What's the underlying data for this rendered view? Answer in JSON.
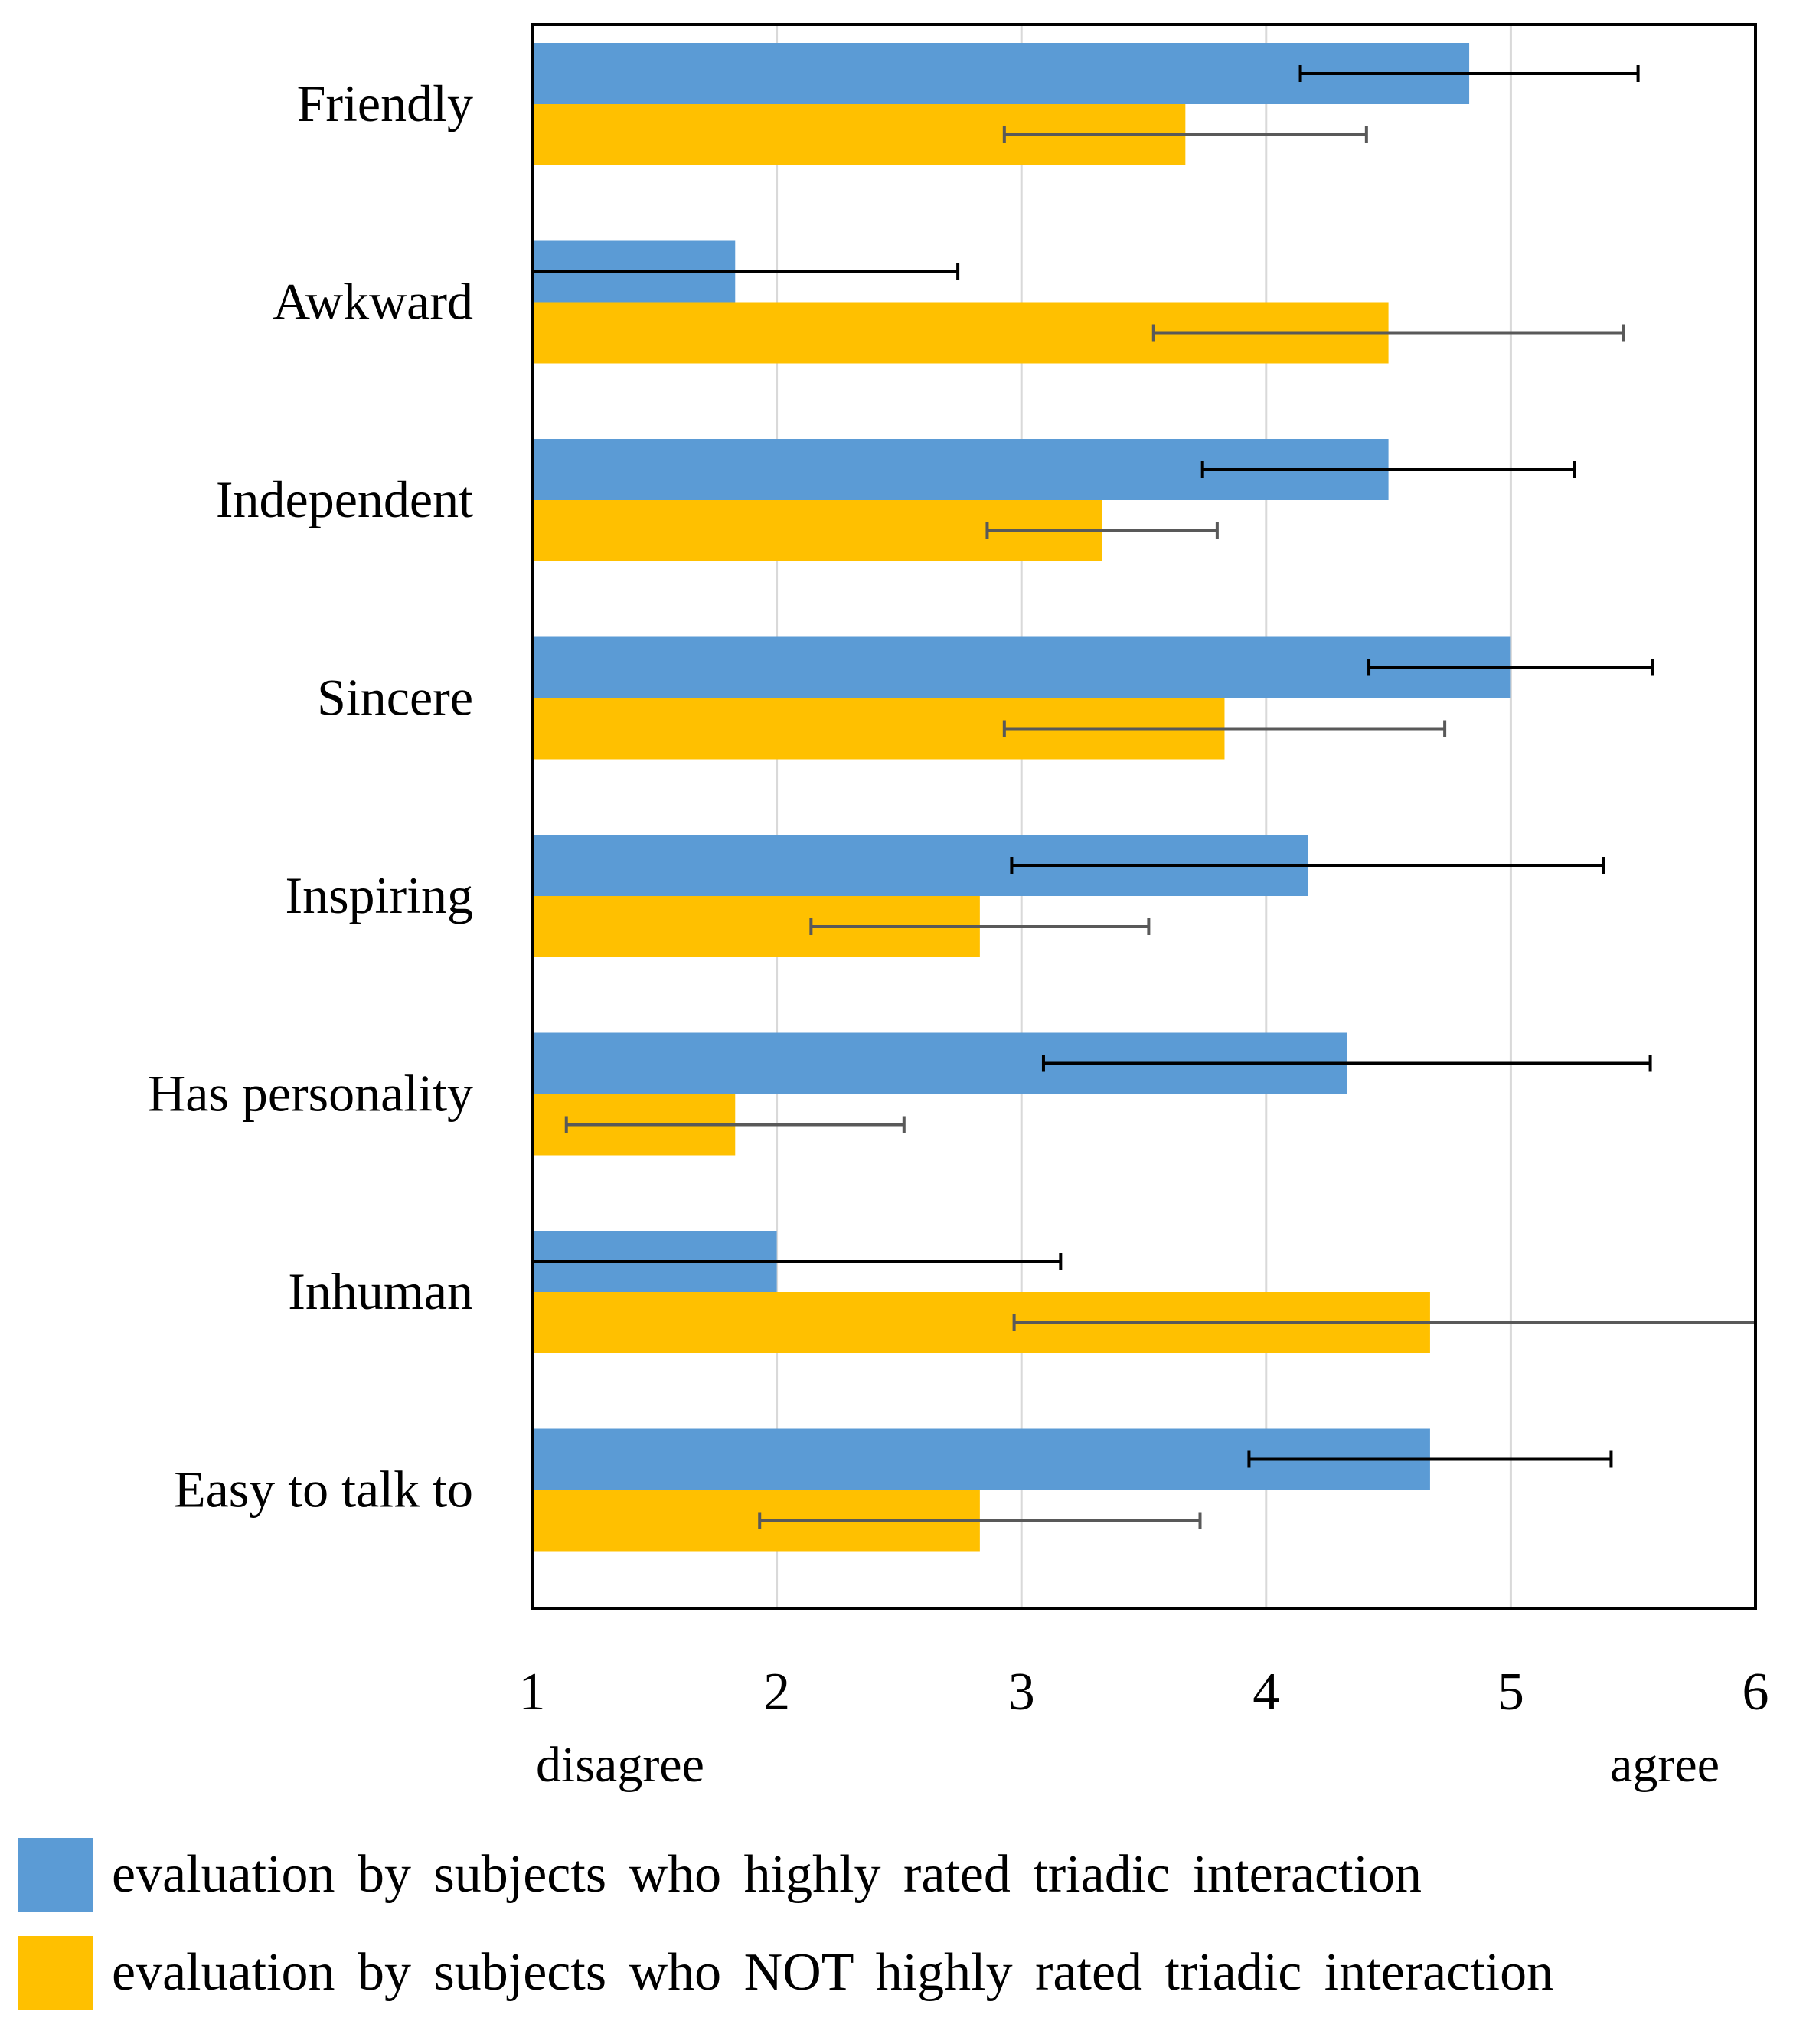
{
  "chart_data": {
    "type": "bar",
    "orientation": "horizontal",
    "categories": [
      "Friendly",
      "Awkward",
      "Independent",
      "Sincere",
      "Inspiring",
      "Has personality",
      "Inhuman",
      "Easy to talk to"
    ],
    "series": [
      {
        "name": "evaluation by subjects who highly rated triadic interaction",
        "color": "#5b9bd5",
        "values": [
          4.83,
          1.83,
          4.5,
          5.0,
          4.17,
          4.33,
          2.0,
          4.67
        ],
        "errors": [
          0.69,
          0.91,
          0.76,
          0.58,
          1.21,
          1.24,
          1.16,
          0.74
        ]
      },
      {
        "name": "evaluation by subjects who NOT highly rated triadic interaction",
        "color": "#ffc000",
        "values": [
          3.67,
          4.5,
          3.33,
          3.83,
          2.83,
          1.83,
          4.67,
          2.83
        ],
        "errors": [
          0.74,
          0.96,
          0.47,
          0.9,
          0.69,
          0.69,
          1.7,
          0.9
        ]
      }
    ],
    "xlim": [
      1,
      6
    ],
    "xticks": [
      "1",
      "2",
      "3",
      "4",
      "5",
      "6"
    ],
    "xlabel_left": "disagree",
    "xlabel_right": "agree",
    "grid": true,
    "legend_position": "bottom"
  }
}
